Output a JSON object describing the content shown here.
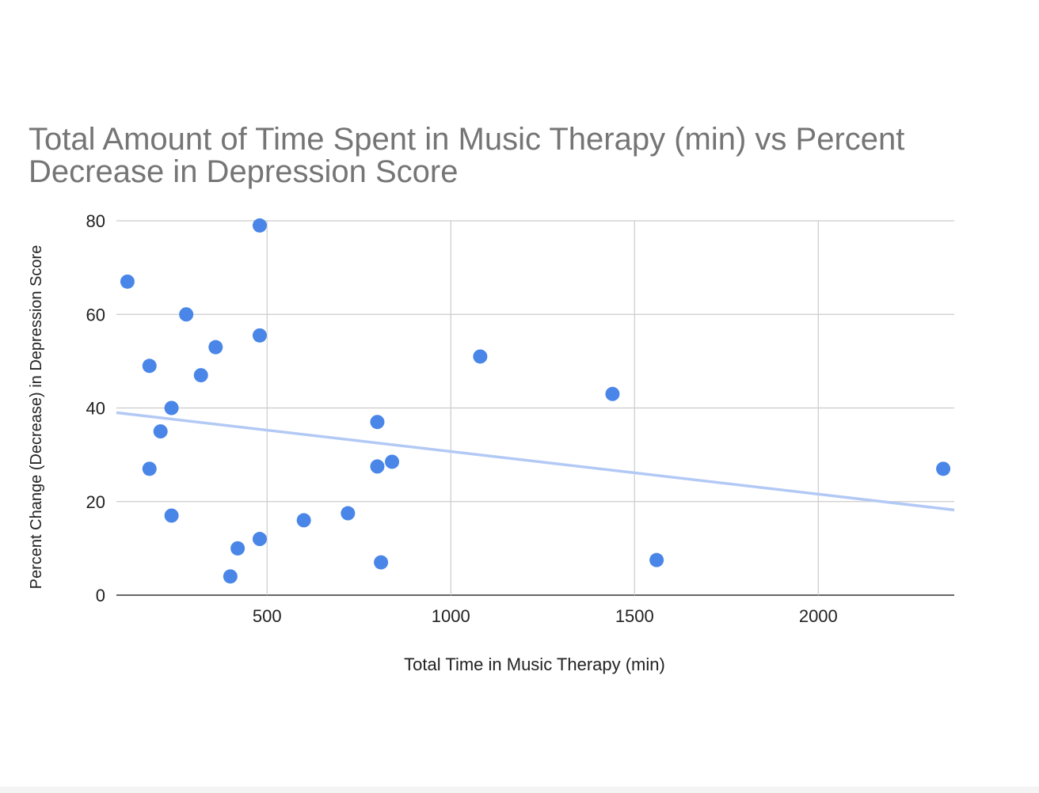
{
  "chart_data": {
    "type": "scatter",
    "title": "Total Amount of Time Spent in Music Therapy (min) vs Percent Decrease in Depression Score",
    "xlabel": "Total Time in Music Therapy (min)",
    "ylabel": "Percent Change (Decrease) in Depression Score",
    "xlim": [
      90,
      2370
    ],
    "ylim": [
      0,
      80
    ],
    "xticks": [
      500,
      1000,
      1500,
      2000
    ],
    "yticks": [
      0,
      20,
      40,
      60,
      80
    ],
    "grid": true,
    "legend": "none",
    "point_color": "#4a86e8",
    "trendline_color": "#b3c9f5",
    "trendline": {
      "x": [
        90,
        2370
      ],
      "y": [
        39,
        18.2
      ]
    },
    "points": [
      {
        "x": 120,
        "y": 67
      },
      {
        "x": 180,
        "y": 27
      },
      {
        "x": 180,
        "y": 49
      },
      {
        "x": 210,
        "y": 35
      },
      {
        "x": 240,
        "y": 40
      },
      {
        "x": 240,
        "y": 17
      },
      {
        "x": 280,
        "y": 60
      },
      {
        "x": 320,
        "y": 47
      },
      {
        "x": 360,
        "y": 53
      },
      {
        "x": 400,
        "y": 4
      },
      {
        "x": 420,
        "y": 10
      },
      {
        "x": 480,
        "y": 79
      },
      {
        "x": 480,
        "y": 55.5
      },
      {
        "x": 480,
        "y": 12
      },
      {
        "x": 600,
        "y": 16
      },
      {
        "x": 720,
        "y": 17.5
      },
      {
        "x": 800,
        "y": 37
      },
      {
        "x": 800,
        "y": 27.5
      },
      {
        "x": 810,
        "y": 7
      },
      {
        "x": 840,
        "y": 28.5
      },
      {
        "x": 1080,
        "y": 51
      },
      {
        "x": 1440,
        "y": 43
      },
      {
        "x": 1560,
        "y": 7.5
      },
      {
        "x": 2340,
        "y": 27
      }
    ]
  }
}
